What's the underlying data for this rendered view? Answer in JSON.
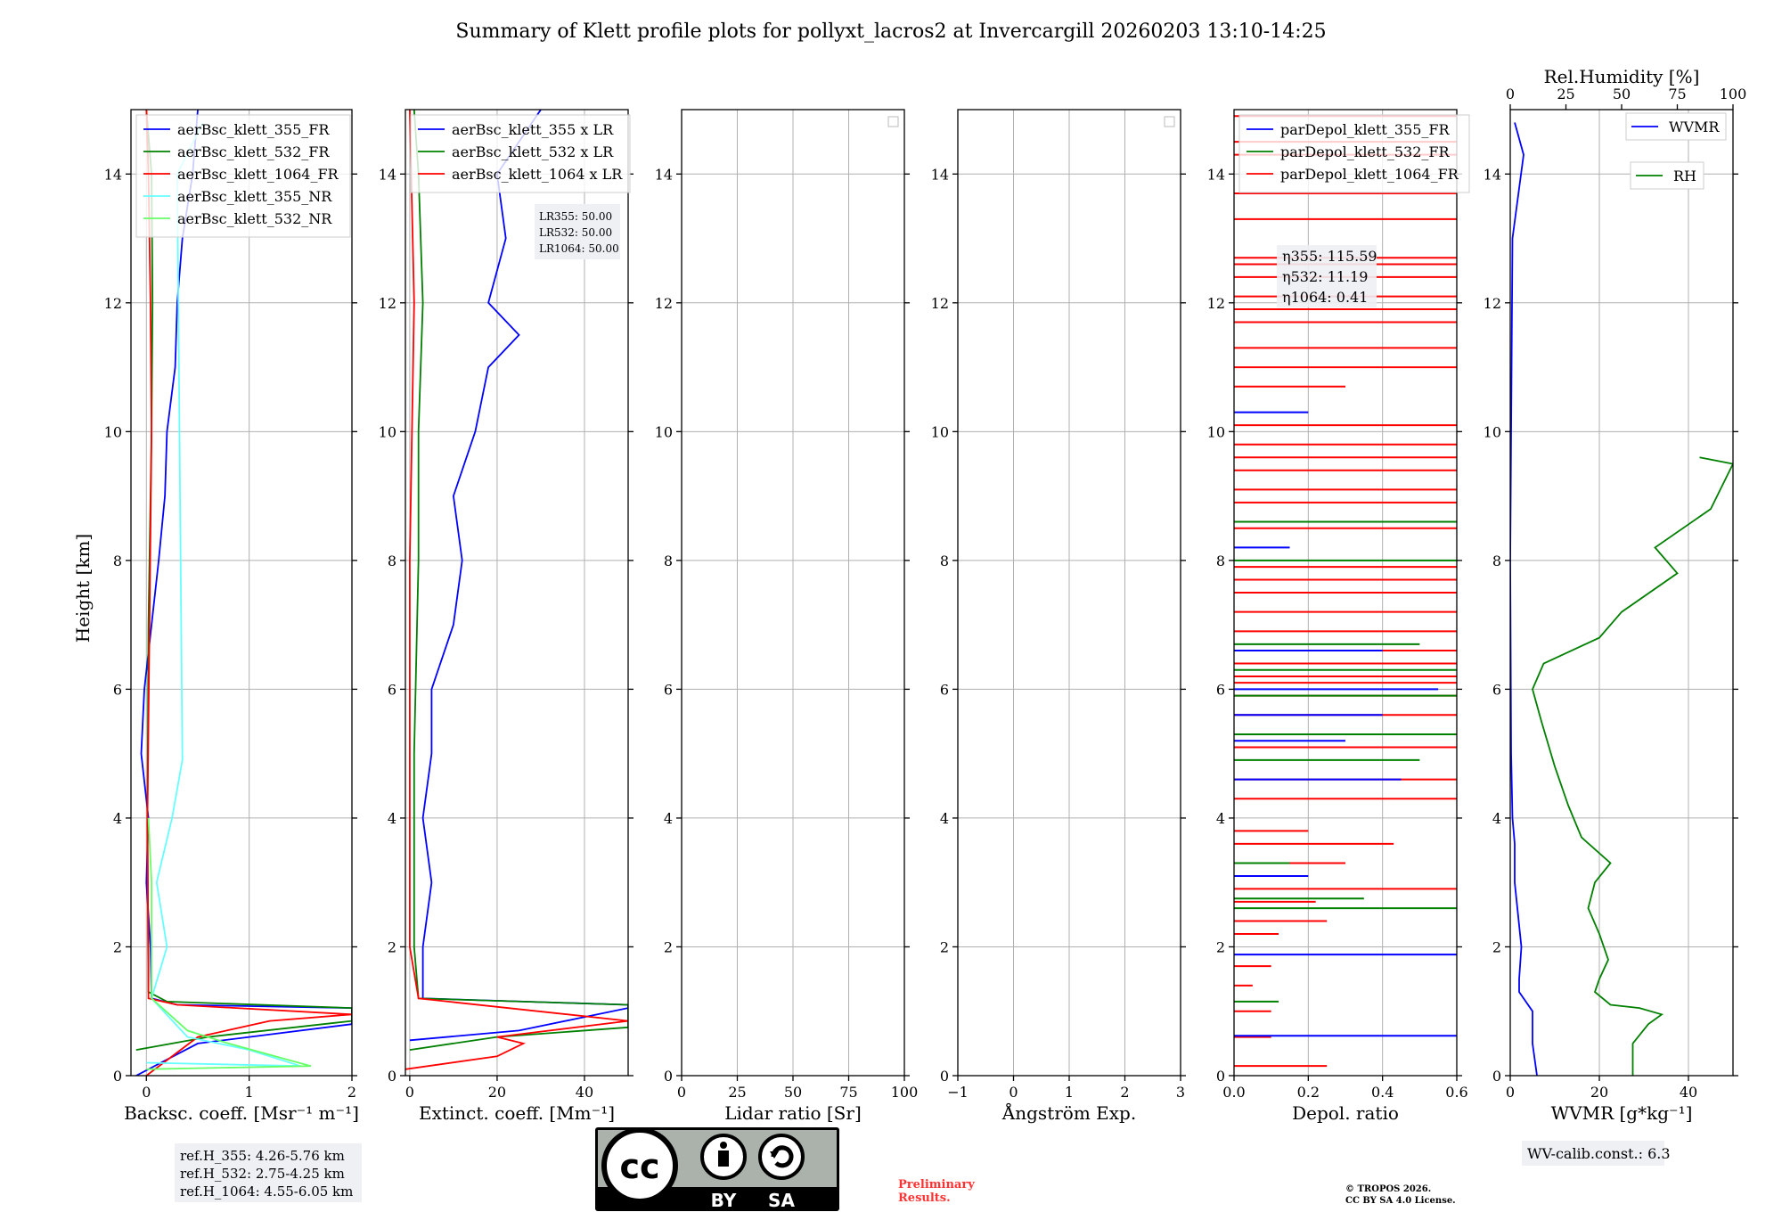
{
  "title": "Summary of Klett profile plots for pollyxt_lacros2 at Invercargill 20260203 13:10-14:25",
  "ylabel": "Height [km]",
  "y_ticks": [
    "0",
    "2",
    "4",
    "6",
    "8",
    "10",
    "12",
    "14"
  ],
  "chart_data": [
    {
      "type": "line",
      "id": "backscatter",
      "xlabel": "Backsc. coeff. [Msr⁻¹ m⁻¹]",
      "xlim": [
        -0.15,
        2
      ],
      "x_ticks": [
        "0",
        "1",
        "2"
      ],
      "x_tick_values": [
        0,
        1,
        2
      ],
      "ylim": [
        0,
        15
      ],
      "legend": [
        {
          "name": "aerBsc_klett_355_FR",
          "color": "#0000ff"
        },
        {
          "name": "aerBsc_klett_532_FR",
          "color": "#008000"
        },
        {
          "name": "aerBsc_klett_1064_FR",
          "color": "#ff0000"
        },
        {
          "name": "aerBsc_klett_355_NR",
          "color": "#66ffff"
        },
        {
          "name": "aerBsc_klett_532_NR",
          "color": "#66ff66"
        }
      ],
      "series": [
        {
          "name": "aerBsc_klett_355_FR",
          "color": "#0000ff",
          "points": [
            [
              -0.1,
              0
            ],
            [
              0.5,
              0.5
            ],
            [
              2,
              0.8
            ],
            [
              2,
              1.05
            ],
            [
              0.3,
              1.1
            ],
            [
              0.05,
              1.2
            ],
            [
              0.04,
              2
            ],
            [
              0.0,
              3
            ],
            [
              0.02,
              4
            ],
            [
              -0.05,
              5
            ],
            [
              -0.02,
              6
            ],
            [
              0.05,
              7
            ],
            [
              0.12,
              8
            ],
            [
              0.18,
              9
            ],
            [
              0.2,
              10
            ],
            [
              0.28,
              11
            ],
            [
              0.3,
              12
            ],
            [
              0.35,
              13
            ],
            [
              0.45,
              14
            ],
            [
              0.5,
              15
            ]
          ]
        },
        {
          "name": "aerBsc_klett_532_FR",
          "color": "#008000",
          "points": [
            [
              -0.1,
              0.4
            ],
            [
              0.6,
              0.6
            ],
            [
              2,
              0.85
            ],
            [
              2,
              1.05
            ],
            [
              0.2,
              1.15
            ],
            [
              0.02,
              1.3
            ],
            [
              0.01,
              4
            ],
            [
              0.02,
              7
            ],
            [
              0.05,
              10
            ],
            [
              0.06,
              12
            ],
            [
              0.05,
              14
            ],
            [
              0.0,
              15
            ]
          ]
        },
        {
          "name": "aerBsc_klett_1064_FR",
          "color": "#ff0000",
          "points": [
            [
              0.0,
              0
            ],
            [
              0.5,
              0.6
            ],
            [
              1.2,
              0.85
            ],
            [
              2,
              0.95
            ],
            [
              0.3,
              1.1
            ],
            [
              0.02,
              1.2
            ],
            [
              0.01,
              4
            ],
            [
              0.03,
              7
            ],
            [
              0.05,
              10
            ],
            [
              0.04,
              12
            ],
            [
              0.02,
              14
            ],
            [
              0.0,
              15
            ]
          ]
        },
        {
          "name": "aerBsc_klett_355_NR",
          "color": "#66ffff",
          "points": [
            [
              0.0,
              0.2
            ],
            [
              1.5,
              0.15
            ],
            [
              1.0,
              0.4
            ],
            [
              0.4,
              0.6
            ],
            [
              0.05,
              1.2
            ],
            [
              0.2,
              2
            ],
            [
              0.1,
              3
            ],
            [
              0.25,
              4
            ],
            [
              0.35,
              4.9
            ],
            [
              0.3,
              14
            ],
            [
              0.55,
              14.8
            ]
          ]
        },
        {
          "name": "aerBsc_klett_532_NR",
          "color": "#66ff66",
          "points": [
            [
              0.0,
              0.1
            ],
            [
              1.6,
              0.15
            ],
            [
              0.8,
              0.5
            ],
            [
              0.4,
              0.7
            ],
            [
              0.05,
              1.2
            ],
            [
              0.05,
              3
            ],
            [
              0.02,
              4
            ]
          ]
        }
      ],
      "annotation": [
        "ref.H_355: 4.26-5.76 km",
        "ref.H_532: 2.75-4.25 km",
        "ref.H_1064: 4.55-6.05 km"
      ]
    },
    {
      "type": "line",
      "id": "extinction",
      "xlabel": "Extinct. coeff. [Mm⁻¹]",
      "xlim": [
        -1,
        50
      ],
      "x_ticks": [
        "0",
        "20",
        "40"
      ],
      "x_tick_values": [
        0,
        20,
        40
      ],
      "ylim": [
        0,
        15
      ],
      "legend": [
        {
          "name": "aerBsc_klett_355 x LR",
          "color": "#0000ff"
        },
        {
          "name": "aerBsc_klett_532 x LR",
          "color": "#008000"
        },
        {
          "name": "aerBsc_klett_1064 x LR",
          "color": "#ff0000"
        }
      ],
      "series": [
        {
          "name": "aerBsc_klett_355 x LR",
          "color": "#0000ff",
          "points": [
            [
              0,
              0.55
            ],
            [
              25,
              0.7
            ],
            [
              50,
              1.05
            ],
            [
              50,
              1.1
            ],
            [
              3,
              1.2
            ],
            [
              3,
              2
            ],
            [
              5,
              3
            ],
            [
              3,
              4
            ],
            [
              5,
              5
            ],
            [
              5,
              6
            ],
            [
              10,
              7
            ],
            [
              12,
              8
            ],
            [
              10,
              9
            ],
            [
              15,
              10
            ],
            [
              18,
              11
            ],
            [
              25,
              11.5
            ],
            [
              18,
              12
            ],
            [
              22,
              13
            ],
            [
              20,
              14
            ],
            [
              30,
              15
            ]
          ]
        },
        {
          "name": "aerBsc_klett_532 x LR",
          "color": "#008000",
          "points": [
            [
              0,
              0.4
            ],
            [
              20,
              0.6
            ],
            [
              50,
              0.75
            ],
            [
              50,
              1.1
            ],
            [
              2,
              1.2
            ],
            [
              1,
              2
            ],
            [
              1,
              5
            ],
            [
              2,
              8
            ],
            [
              2,
              10
            ],
            [
              3,
              12
            ],
            [
              2,
              14
            ],
            [
              1,
              15
            ]
          ]
        },
        {
          "name": "aerBsc_klett_1064 x LR",
          "color": "#ff0000",
          "points": [
            [
              -1,
              0.1
            ],
            [
              20,
              0.3
            ],
            [
              26,
              0.5
            ],
            [
              20,
              0.6
            ],
            [
              50,
              0.85
            ],
            [
              2,
              1.2
            ],
            [
              0,
              2
            ],
            [
              0,
              8
            ],
            [
              1,
              12
            ],
            [
              0,
              15
            ]
          ]
        }
      ],
      "lr_box": [
        "LR355: 50.00",
        "LR532: 50.00",
        "LR1064: 50.00"
      ]
    },
    {
      "type": "line",
      "id": "lidar-ratio",
      "xlabel": "Lidar ratio [Sr]",
      "xlim": [
        0,
        100
      ],
      "x_ticks": [
        "0",
        "25",
        "50",
        "75",
        "100"
      ],
      "x_tick_values": [
        0,
        25,
        50,
        75,
        100
      ],
      "ylim": [
        0,
        15
      ],
      "series": []
    },
    {
      "type": "line",
      "id": "angstrom",
      "xlabel": "Ångström Exp.",
      "xlim": [
        -1,
        3
      ],
      "x_ticks": [
        "−1",
        "0",
        "1",
        "2",
        "3"
      ],
      "x_tick_values": [
        -1,
        0,
        1,
        2,
        3
      ],
      "ylim": [
        0,
        15
      ],
      "series": []
    },
    {
      "type": "line",
      "id": "depol",
      "xlabel": "Depol. ratio",
      "xlim": [
        0,
        0.6
      ],
      "x_ticks": [
        "0.0",
        "0.2",
        "0.4",
        "0.6"
      ],
      "x_tick_values": [
        0,
        0.2,
        0.4,
        0.6
      ],
      "ylim": [
        0,
        15
      ],
      "legend": [
        {
          "name": "parDepol_klett_355_FR",
          "color": "#0000ff"
        },
        {
          "name": "parDepol_klett_532_FR",
          "color": "#008000"
        },
        {
          "name": "parDepol_klett_1064_FR",
          "color": "#ff0000"
        }
      ],
      "eta_box": [
        "η355: 115.59",
        "η532: 11.19",
        "η1064: 0.41"
      ],
      "spikes": [
        {
          "color": "#ff0000",
          "heights": [
            0.15,
            0.6,
            1.0,
            1.4,
            1.7,
            2.2,
            2.4,
            2.7,
            2.9,
            3.3,
            3.6,
            3.8,
            4.3,
            4.6,
            5.1,
            5.6,
            5.9,
            6.1,
            6.2,
            6.4,
            6.6,
            6.9,
            7.2,
            7.5,
            7.7,
            7.9,
            8.5,
            8.9,
            9.1,
            9.4,
            9.6,
            9.8,
            10.1,
            10.7,
            11.0,
            11.3,
            11.7,
            11.9,
            12.1,
            12.4,
            12.6,
            12.7,
            13.3,
            13.7,
            14.3,
            14.5,
            14.9
          ],
          "values": [
            0.25,
            0.1,
            0.1,
            0.05,
            0.1,
            0.12,
            0.25,
            0.22,
            0.6,
            0.3,
            0.43,
            0.2,
            0.6,
            0.6,
            0.6,
            0.6,
            0.6,
            0.6,
            0.6,
            0.6,
            0.6,
            0.6,
            0.6,
            0.6,
            0.6,
            0.6,
            0.6,
            0.6,
            0.6,
            0.6,
            0.6,
            0.6,
            0.6,
            0.3,
            0.6,
            0.6,
            0.6,
            0.6,
            0.6,
            0.6,
            0.6,
            0.6,
            0.6,
            0.6,
            0.6,
            0.6,
            0.6
          ]
        },
        {
          "color": "#0000ff",
          "heights": [
            0.62,
            1.88,
            3.1,
            4.6,
            5.2,
            5.6,
            6.0,
            6.6,
            8.2,
            10.3
          ],
          "values": [
            0.6,
            0.6,
            0.2,
            0.45,
            0.3,
            0.4,
            0.55,
            0.4,
            0.15,
            0.2
          ]
        },
        {
          "color": "#008000",
          "heights": [
            1.15,
            2.6,
            2.75,
            3.3,
            4.9,
            5.3,
            5.9,
            6.3,
            6.7,
            8.0,
            8.6
          ],
          "values": [
            0.12,
            0.6,
            0.35,
            0.15,
            0.5,
            0.6,
            0.6,
            0.6,
            0.5,
            0.6,
            0.6
          ]
        }
      ]
    },
    {
      "type": "line",
      "id": "wvmr",
      "xlabel": "WVMR [g*kg⁻¹]",
      "xlim": [
        0,
        50
      ],
      "x_ticks": [
        "0",
        "20",
        "40"
      ],
      "x_tick_values": [
        0,
        20,
        40
      ],
      "top_xlabel": "Rel.Humidity [%]",
      "top_ticks": [
        "0",
        "25",
        "50",
        "75",
        "100"
      ],
      "top_tick_values": [
        0,
        25,
        50,
        75,
        100
      ],
      "ylim": [
        0,
        15
      ],
      "legend": [
        {
          "name": "WVMR",
          "color": "#0000ff"
        },
        {
          "name": "RH",
          "color": "#008000"
        }
      ],
      "series": [
        {
          "name": "WVMR",
          "color": "#0000ff",
          "points": [
            [
              6,
              0
            ],
            [
              5,
              0.5
            ],
            [
              5,
              1.0
            ],
            [
              2,
              1.3
            ],
            [
              2,
              1.5
            ],
            [
              2.5,
              2
            ],
            [
              1,
              3
            ],
            [
              1,
              3.6
            ],
            [
              0.5,
              4
            ],
            [
              0.2,
              5
            ],
            [
              0,
              8
            ],
            [
              0.5,
              13
            ],
            [
              3,
              14.3
            ],
            [
              1,
              14.8
            ]
          ]
        },
        {
          "name": "RH (%)",
          "color": "#008000",
          "points": [
            [
              55,
              0
            ],
            [
              55,
              0.5
            ],
            [
              62,
              0.8
            ],
            [
              68,
              0.95
            ],
            [
              58,
              1.05
            ],
            [
              45,
              1.1
            ],
            [
              38,
              1.3
            ],
            [
              40,
              1.5
            ],
            [
              44,
              1.8
            ],
            [
              40,
              2.2
            ],
            [
              35,
              2.6
            ],
            [
              38,
              3.0
            ],
            [
              45,
              3.3
            ],
            [
              32,
              3.7
            ],
            [
              26,
              4.2
            ],
            [
              20,
              4.8
            ],
            [
              14,
              5.5
            ],
            [
              10,
              6
            ],
            [
              15,
              6.4
            ],
            [
              40,
              6.8
            ],
            [
              50,
              7.2
            ],
            [
              75,
              7.8
            ],
            [
              65,
              8.2
            ],
            [
              90,
              8.8
            ],
            [
              100,
              9.5
            ],
            [
              85,
              9.6
            ]
          ]
        }
      ],
      "annotation": "WV-calib.const.: 6.3"
    }
  ],
  "license": {
    "badge_left": "cc",
    "badge_by": "BY",
    "badge_sa": "SA",
    "preliminary_line1": "Preliminary",
    "preliminary_line2": "Results.",
    "copyright_line1": "© TROPOS 2026.",
    "copyright_line2": "CC BY SA 4.0 License."
  }
}
